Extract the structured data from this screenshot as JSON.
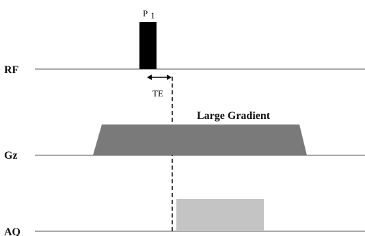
{
  "rows": {
    "rf": "RF",
    "gz": "Gz",
    "aq": "AQ"
  },
  "pulse": {
    "label_main": "P",
    "label_sub": "1"
  },
  "te": {
    "label": "TE"
  },
  "gradient": {
    "label": "Large Gradient"
  },
  "colors": {
    "baseline": "#8c8c8c",
    "pulse": "#000000",
    "gradient": "#7a7a7a",
    "acquisition": "#c4c4c4",
    "dashed_line": "#000000"
  }
}
